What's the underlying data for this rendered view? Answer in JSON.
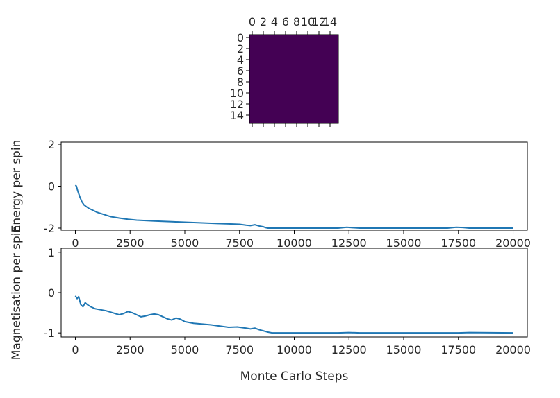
{
  "chart_data": [
    {
      "type": "heatmap",
      "grid_size": 16,
      "uniform_value": -1,
      "cell_color": "#440154",
      "colormap": "viridis",
      "x_ticks": [
        0,
        2,
        4,
        6,
        8,
        10,
        12,
        14
      ],
      "y_ticks": [
        0,
        2,
        4,
        6,
        8,
        10,
        12,
        14
      ],
      "x_tick_position": "top",
      "title": "",
      "xlabel": "",
      "ylabel": ""
    },
    {
      "type": "line",
      "title": "",
      "xlabel": "",
      "ylabel": "Energy per spin",
      "xlim": [
        -650,
        20650
      ],
      "ylim": [
        -2.1,
        2.1
      ],
      "x_ticks": [
        0,
        2500,
        5000,
        7500,
        10000,
        12500,
        15000,
        17500,
        20000
      ],
      "y_ticks": [
        -2,
        0,
        2
      ],
      "grid": false,
      "series": [
        {
          "color": "#1f77b4",
          "x": [
            0,
            50,
            100,
            200,
            300,
            400,
            600,
            800,
            1000,
            1300,
            1600,
            2000,
            2400,
            2800,
            3200,
            3600,
            4000,
            4500,
            5000,
            5500,
            6000,
            6500,
            7000,
            7500,
            7800,
            8000,
            8200,
            8400,
            8600,
            8700,
            8800,
            9000,
            10000,
            11000,
            12000,
            12400,
            12800,
            13000,
            14000,
            15000,
            16000,
            17000,
            17400,
            17700,
            18000,
            19000,
            20000
          ],
          "y": [
            0.05,
            0.0,
            -0.2,
            -0.5,
            -0.75,
            -0.9,
            -1.05,
            -1.15,
            -1.25,
            -1.35,
            -1.45,
            -1.52,
            -1.58,
            -1.62,
            -1.64,
            -1.66,
            -1.68,
            -1.7,
            -1.72,
            -1.74,
            -1.76,
            -1.78,
            -1.8,
            -1.82,
            -1.86,
            -1.88,
            -1.84,
            -1.9,
            -1.94,
            -1.98,
            -2.0,
            -2.0,
            -2.0,
            -2.0,
            -2.0,
            -1.96,
            -1.99,
            -2.0,
            -2.0,
            -2.0,
            -2.0,
            -2.0,
            -1.96,
            -1.97,
            -2.0,
            -2.0,
            -2.0
          ]
        }
      ]
    },
    {
      "type": "line",
      "title": "",
      "xlabel": "Monte Carlo Steps",
      "ylabel": "Magnetisation per spin",
      "xlim": [
        -650,
        20650
      ],
      "ylim": [
        -1.1,
        1.1
      ],
      "x_ticks": [
        0,
        2500,
        5000,
        7500,
        10000,
        12500,
        15000,
        17500,
        20000
      ],
      "y_ticks": [
        -1,
        0,
        1
      ],
      "grid": false,
      "series": [
        {
          "color": "#1f77b4",
          "x": [
            0,
            80,
            150,
            250,
            350,
            450,
            550,
            700,
            900,
            1100,
            1400,
            1700,
            2000,
            2200,
            2400,
            2600,
            2800,
            3000,
            3200,
            3400,
            3600,
            3800,
            4000,
            4200,
            4400,
            4600,
            4800,
            5000,
            5400,
            5800,
            6200,
            6600,
            7000,
            7400,
            7800,
            8000,
            8200,
            8400,
            8600,
            8800,
            9000,
            10000,
            12000,
            12500,
            13000,
            15000,
            17500,
            18000,
            20000
          ],
          "y": [
            -0.08,
            -0.15,
            -0.1,
            -0.3,
            -0.35,
            -0.25,
            -0.3,
            -0.35,
            -0.4,
            -0.42,
            -0.45,
            -0.5,
            -0.55,
            -0.52,
            -0.47,
            -0.5,
            -0.55,
            -0.6,
            -0.58,
            -0.55,
            -0.53,
            -0.55,
            -0.6,
            -0.65,
            -0.68,
            -0.63,
            -0.66,
            -0.72,
            -0.76,
            -0.78,
            -0.8,
            -0.83,
            -0.86,
            -0.85,
            -0.88,
            -0.9,
            -0.88,
            -0.92,
            -0.95,
            -0.98,
            -1.0,
            -1.0,
            -1.0,
            -0.99,
            -1.0,
            -1.0,
            -1.0,
            -0.99,
            -1.0
          ]
        }
      ]
    }
  ]
}
